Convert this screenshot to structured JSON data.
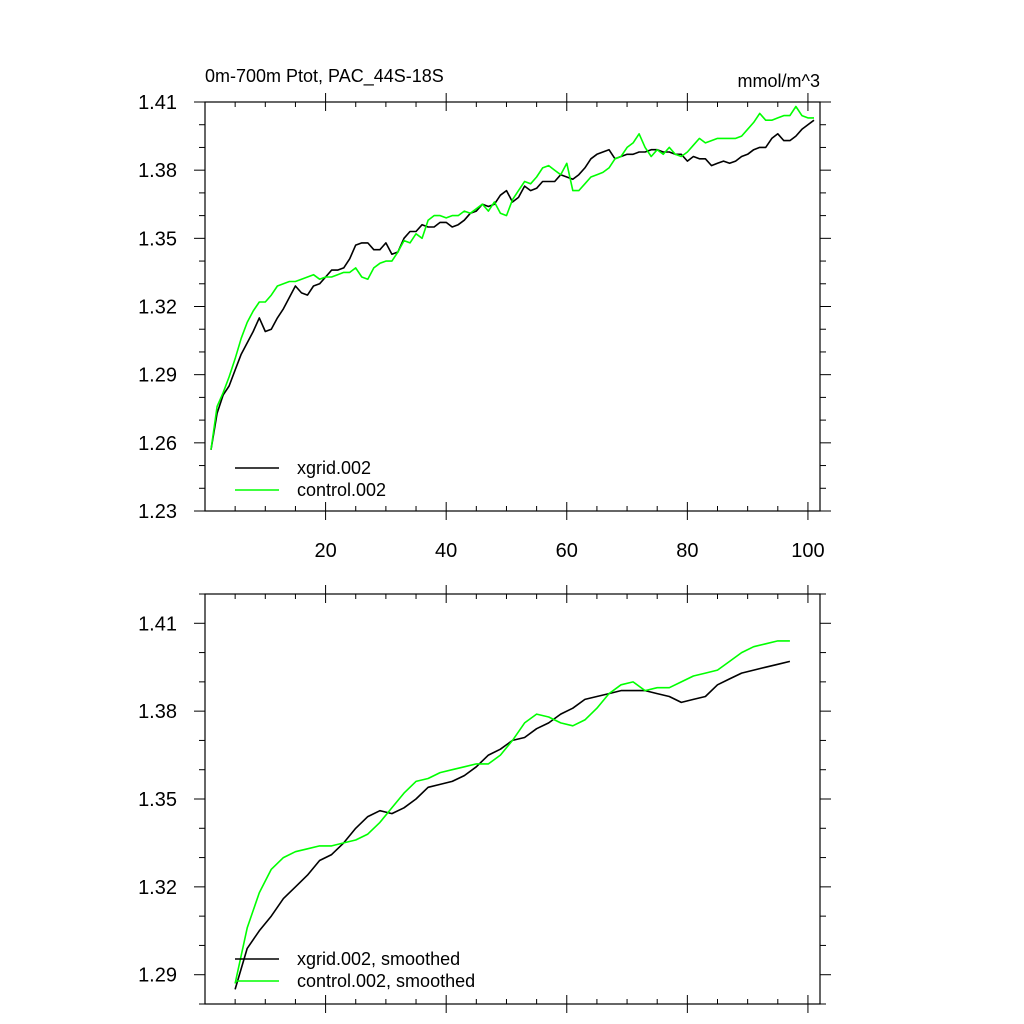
{
  "chart_data": [
    {
      "type": "line",
      "title": "0m-700m Ptot, PAC_44S-18S",
      "units": "mmol/m^3",
      "xlim": [
        0,
        102
      ],
      "ylim": [
        1.23,
        1.41
      ],
      "x_ticks": [
        20,
        40,
        60,
        80,
        100
      ],
      "y_ticks": [
        1.23,
        1.26,
        1.29,
        1.32,
        1.35,
        1.38,
        1.41
      ],
      "y_tick_labels": [
        "1.23",
        "1.26",
        "1.29",
        "1.32",
        "1.35",
        "1.38",
        "1.41"
      ],
      "legend_position": "bottom-left",
      "series": [
        {
          "name": "xgrid.002",
          "color": "#000000",
          "x": [
            1,
            2,
            3,
            4,
            5,
            6,
            7,
            8,
            9,
            10,
            11,
            12,
            13,
            14,
            15,
            16,
            17,
            18,
            19,
            20,
            21,
            22,
            23,
            24,
            25,
            26,
            27,
            28,
            29,
            30,
            31,
            32,
            33,
            34,
            35,
            36,
            37,
            38,
            39,
            40,
            41,
            42,
            43,
            44,
            45,
            46,
            47,
            48,
            49,
            50,
            51,
            52,
            53,
            54,
            55,
            56,
            57,
            58,
            59,
            60,
            61,
            62,
            63,
            64,
            65,
            66,
            67,
            68,
            69,
            70,
            71,
            72,
            73,
            74,
            75,
            76,
            77,
            78,
            79,
            80,
            81,
            82,
            83,
            84,
            85,
            86,
            87,
            88,
            89,
            90,
            91,
            92,
            93,
            94,
            95,
            96,
            97,
            98,
            99,
            100,
            101
          ],
          "values": [
            1.257,
            1.273,
            1.281,
            1.285,
            1.292,
            1.299,
            1.304,
            1.309,
            1.315,
            1.309,
            1.31,
            1.315,
            1.319,
            1.324,
            1.329,
            1.326,
            1.325,
            1.329,
            1.33,
            1.333,
            1.336,
            1.336,
            1.337,
            1.341,
            1.347,
            1.348,
            1.348,
            1.345,
            1.345,
            1.348,
            1.343,
            1.344,
            1.35,
            1.353,
            1.353,
            1.356,
            1.355,
            1.355,
            1.357,
            1.357,
            1.355,
            1.356,
            1.358,
            1.361,
            1.362,
            1.365,
            1.364,
            1.365,
            1.369,
            1.371,
            1.366,
            1.368,
            1.373,
            1.371,
            1.372,
            1.375,
            1.375,
            1.375,
            1.378,
            1.377,
            1.376,
            1.378,
            1.381,
            1.385,
            1.387,
            1.388,
            1.389,
            1.385,
            1.386,
            1.387,
            1.387,
            1.388,
            1.388,
            1.389,
            1.389,
            1.388,
            1.388,
            1.387,
            1.387,
            1.384,
            1.386,
            1.385,
            1.385,
            1.382,
            1.383,
            1.384,
            1.383,
            1.384,
            1.386,
            1.387,
            1.389,
            1.39,
            1.39,
            1.394,
            1.396,
            1.393,
            1.393,
            1.395,
            1.398,
            1.4,
            1.402
          ]
        },
        {
          "name": "control.002",
          "color": "#00ff00",
          "x": [
            1,
            2,
            3,
            4,
            5,
            6,
            7,
            8,
            9,
            10,
            11,
            12,
            13,
            14,
            15,
            16,
            17,
            18,
            19,
            20,
            21,
            22,
            23,
            24,
            25,
            26,
            27,
            28,
            29,
            30,
            31,
            32,
            33,
            34,
            35,
            36,
            37,
            38,
            39,
            40,
            41,
            42,
            43,
            44,
            45,
            46,
            47,
            48,
            49,
            50,
            51,
            52,
            53,
            54,
            55,
            56,
            57,
            58,
            59,
            60,
            61,
            62,
            63,
            64,
            65,
            66,
            67,
            68,
            69,
            70,
            71,
            72,
            73,
            74,
            75,
            76,
            77,
            78,
            79,
            80,
            81,
            82,
            83,
            84,
            85,
            86,
            87,
            88,
            89,
            90,
            91,
            92,
            93,
            94,
            95,
            96,
            97,
            98,
            99,
            100,
            101
          ],
          "values": [
            1.257,
            1.276,
            1.282,
            1.289,
            1.297,
            1.306,
            1.313,
            1.318,
            1.322,
            1.322,
            1.325,
            1.329,
            1.33,
            1.331,
            1.331,
            1.332,
            1.333,
            1.334,
            1.332,
            1.333,
            1.333,
            1.334,
            1.335,
            1.335,
            1.337,
            1.333,
            1.332,
            1.337,
            1.339,
            1.34,
            1.34,
            1.344,
            1.349,
            1.348,
            1.352,
            1.35,
            1.358,
            1.36,
            1.36,
            1.359,
            1.36,
            1.36,
            1.362,
            1.361,
            1.363,
            1.365,
            1.362,
            1.366,
            1.361,
            1.36,
            1.367,
            1.371,
            1.375,
            1.374,
            1.377,
            1.381,
            1.382,
            1.38,
            1.378,
            1.383,
            1.371,
            1.371,
            1.374,
            1.377,
            1.378,
            1.379,
            1.381,
            1.385,
            1.386,
            1.39,
            1.392,
            1.396,
            1.39,
            1.386,
            1.389,
            1.387,
            1.39,
            1.387,
            1.386,
            1.388,
            1.391,
            1.394,
            1.392,
            1.393,
            1.394,
            1.394,
            1.394,
            1.394,
            1.395,
            1.398,
            1.401,
            1.405,
            1.402,
            1.402,
            1.403,
            1.404,
            1.404,
            1.408,
            1.404,
            1.403,
            1.403
          ]
        }
      ]
    },
    {
      "type": "line",
      "title": "",
      "xlim": [
        0,
        102
      ],
      "ylim": [
        1.28,
        1.42
      ],
      "y_ticks": [
        1.29,
        1.32,
        1.35,
        1.38,
        1.41
      ],
      "y_tick_labels": [
        "1.29",
        "1.32",
        "1.35",
        "1.38",
        "1.41"
      ],
      "legend_position": "bottom-left",
      "series": [
        {
          "name": "xgrid.002, smoothed",
          "color": "#000000",
          "x": [
            5,
            7,
            9,
            11,
            13,
            15,
            17,
            19,
            21,
            23,
            25,
            27,
            29,
            31,
            33,
            35,
            37,
            39,
            41,
            43,
            45,
            47,
            49,
            51,
            53,
            55,
            57,
            59,
            61,
            63,
            65,
            67,
            69,
            71,
            73,
            75,
            77,
            79,
            81,
            83,
            85,
            87,
            89,
            91,
            93,
            95,
            97
          ],
          "values": [
            1.285,
            1.299,
            1.305,
            1.31,
            1.316,
            1.32,
            1.324,
            1.329,
            1.331,
            1.335,
            1.34,
            1.344,
            1.346,
            1.345,
            1.347,
            1.35,
            1.354,
            1.355,
            1.356,
            1.358,
            1.361,
            1.365,
            1.367,
            1.37,
            1.371,
            1.374,
            1.376,
            1.379,
            1.381,
            1.384,
            1.385,
            1.386,
            1.387,
            1.387,
            1.387,
            1.386,
            1.385,
            1.383,
            1.384,
            1.385,
            1.389,
            1.391,
            1.393,
            1.394,
            1.395,
            1.396,
            1.397
          ]
        },
        {
          "name": "control.002, smoothed",
          "color": "#00ff00",
          "x": [
            5,
            7,
            9,
            11,
            13,
            15,
            17,
            19,
            21,
            23,
            25,
            27,
            29,
            31,
            33,
            35,
            37,
            39,
            41,
            43,
            45,
            47,
            49,
            51,
            53,
            55,
            57,
            59,
            61,
            63,
            65,
            67,
            69,
            71,
            73,
            75,
            77,
            79,
            81,
            83,
            85,
            87,
            89,
            91,
            93,
            95,
            97
          ],
          "values": [
            1.287,
            1.306,
            1.318,
            1.326,
            1.33,
            1.332,
            1.333,
            1.334,
            1.334,
            1.335,
            1.336,
            1.338,
            1.342,
            1.347,
            1.352,
            1.356,
            1.357,
            1.359,
            1.36,
            1.361,
            1.362,
            1.362,
            1.365,
            1.37,
            1.376,
            1.379,
            1.378,
            1.376,
            1.375,
            1.377,
            1.381,
            1.386,
            1.389,
            1.39,
            1.387,
            1.388,
            1.388,
            1.39,
            1.392,
            1.393,
            1.394,
            1.397,
            1.4,
            1.402,
            1.403,
            1.404,
            1.404
          ]
        }
      ]
    }
  ]
}
